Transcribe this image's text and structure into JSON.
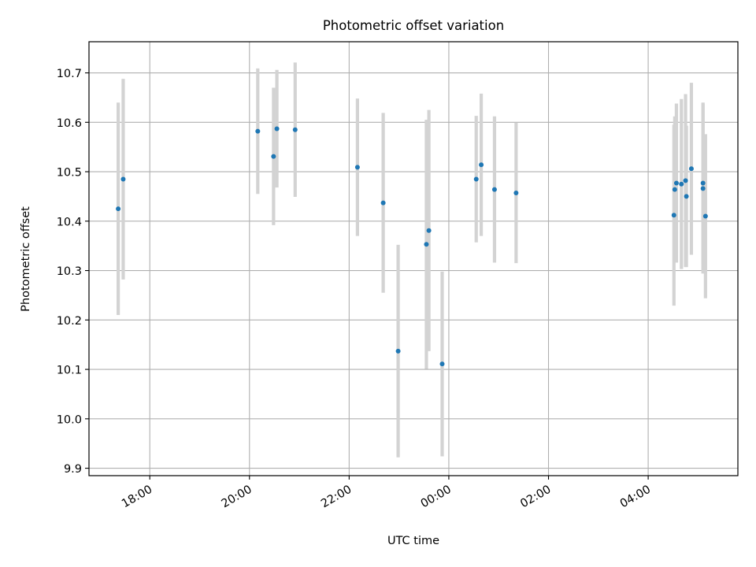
{
  "chart_data": {
    "type": "scatter",
    "title": "Photometric offset variation",
    "xlabel": "UTC time",
    "ylabel": "Photometric offset",
    "x_axis_kind": "time",
    "x_tick_labels": [
      "18:00",
      "20:00",
      "22:00",
      "00:00",
      "02:00",
      "04:00"
    ],
    "x_tick_values": [
      -6,
      -4,
      -2,
      0,
      2,
      4
    ],
    "xlim": [
      -7.22,
      5.8
    ],
    "y_ticks": [
      9.9,
      10.0,
      10.1,
      10.2,
      10.3,
      10.4,
      10.5,
      10.6,
      10.7
    ],
    "y_tick_labels": [
      "9.9",
      "10.0",
      "10.1",
      "10.2",
      "10.3",
      "10.4",
      "10.5",
      "10.6",
      "10.7"
    ],
    "ylim": [
      9.885,
      10.763
    ],
    "grid": true,
    "legend": "none",
    "series": [
      {
        "marker_color": "#1f77b4",
        "errorbar_color": "#d3d3d3",
        "points": [
          {
            "time": "17:22",
            "y": 10.425,
            "err": 0.215
          },
          {
            "time": "17:28",
            "y": 10.485,
            "err": 0.203
          },
          {
            "time": "20:10",
            "y": 10.582,
            "err": 0.127
          },
          {
            "time": "20:29",
            "y": 10.531,
            "err": 0.139
          },
          {
            "time": "20:33",
            "y": 10.587,
            "err": 0.119
          },
          {
            "time": "20:55",
            "y": 10.585,
            "err": 0.136
          },
          {
            "time": "22:10",
            "y": 10.509,
            "err": 0.139
          },
          {
            "time": "22:41",
            "y": 10.437,
            "err": 0.182
          },
          {
            "time": "22:59",
            "y": 10.137,
            "err": 0.215
          },
          {
            "time": "23:33",
            "y": 10.353,
            "err": 0.252
          },
          {
            "time": "23:36",
            "y": 10.381,
            "err": 0.244
          },
          {
            "time": "23:52",
            "y": 10.111,
            "err": 0.187
          },
          {
            "time": "00:33",
            "y": 10.485,
            "err": 0.128
          },
          {
            "time": "00:39",
            "y": 10.514,
            "err": 0.144
          },
          {
            "time": "00:55",
            "y": 10.464,
            "err": 0.148
          },
          {
            "time": "01:21",
            "y": 10.457,
            "err": 0.142
          },
          {
            "time": "04:31",
            "y": 10.412,
            "err": 0.183
          },
          {
            "time": "04:32",
            "y": 10.464,
            "err": 0.148
          },
          {
            "time": "04:34",
            "y": 10.477,
            "err": 0.161
          },
          {
            "time": "04:40",
            "y": 10.475,
            "err": 0.172
          },
          {
            "time": "04:45",
            "y": 10.482,
            "err": 0.175
          },
          {
            "time": "04:46",
            "y": 10.45,
            "err": 0.143
          },
          {
            "time": "04:52",
            "y": 10.506,
            "err": 0.174
          },
          {
            "time": "05:06",
            "y": 10.477,
            "err": 0.163
          },
          {
            "time": "05:06",
            "y": 10.466,
            "err": 0.172
          },
          {
            "time": "05:09",
            "y": 10.41,
            "err": 0.166
          }
        ]
      }
    ]
  }
}
